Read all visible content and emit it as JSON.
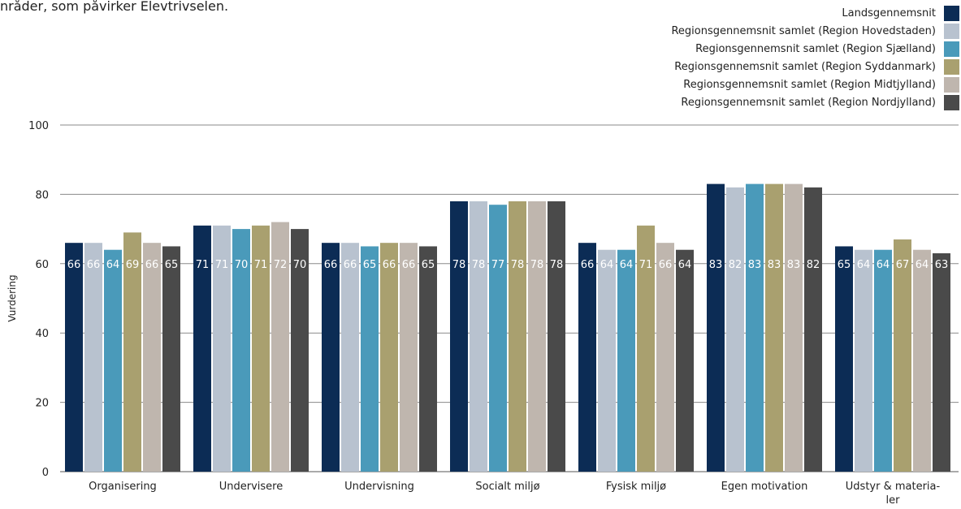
{
  "intro_text": "nråder, som påvirker Elevtrivselen.",
  "chart_data": {
    "type": "bar",
    "title": "",
    "xlabel": "",
    "ylabel": "Vurdering",
    "ylim": [
      0,
      100
    ],
    "yticks": [
      0,
      20,
      40,
      60,
      80,
      100
    ],
    "grid": true,
    "legend_position": "top-right",
    "categories": [
      [
        "Organisering"
      ],
      [
        "Undervisere"
      ],
      [
        "Undervisning"
      ],
      [
        "Socialt miljø"
      ],
      [
        "Fysisk miljø"
      ],
      [
        "Egen motivation"
      ],
      [
        "Udstyr & materia-",
        "ler"
      ]
    ],
    "series": [
      {
        "name": "Landsgennemsnit",
        "color": "#0c2c55",
        "values": [
          66,
          71,
          66,
          78,
          66,
          83,
          65
        ]
      },
      {
        "name": "Regionsgennemsnit samlet (Region Hovedstaden)",
        "color": "#b8c2cf",
        "values": [
          66,
          71,
          66,
          78,
          64,
          82,
          64
        ]
      },
      {
        "name": "Regionsgennemsnit samlet (Region Sjælland)",
        "color": "#4a9aba",
        "values": [
          64,
          70,
          65,
          77,
          64,
          83,
          64
        ]
      },
      {
        "name": "Regionsgennemsnit samlet (Region Syddanmark)",
        "color": "#a9a06f",
        "values": [
          69,
          71,
          66,
          78,
          71,
          83,
          67
        ]
      },
      {
        "name": "Regionsgennemsnit samlet (Region Midtjylland)",
        "color": "#bfb6ae",
        "values": [
          66,
          72,
          66,
          78,
          66,
          83,
          64
        ]
      },
      {
        "name": "Regionsgennemsnit samlet (Region Nordjylland)",
        "color": "#4a4a4a",
        "values": [
          65,
          70,
          65,
          78,
          64,
          82,
          63
        ]
      }
    ]
  }
}
